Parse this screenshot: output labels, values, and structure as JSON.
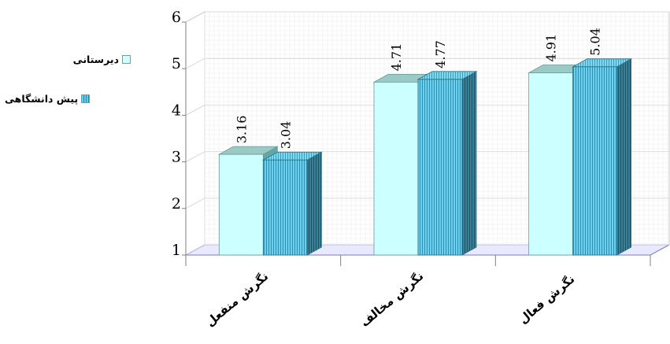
{
  "chart_data": {
    "type": "bar",
    "categories": [
      "نگرش منفعل",
      "نگرش مخالف",
      "نگرش فعال"
    ],
    "series": [
      {
        "name": "دیرستانی",
        "values": [
          3.16,
          4.71,
          4.91
        ]
      },
      {
        "name": "پیش دانشگاهی",
        "values": [
          3.04,
          4.77,
          5.04
        ]
      }
    ],
    "data_labels": [
      [
        "3.16",
        "4.71",
        "4.91"
      ],
      [
        "3.04",
        "4.77",
        "5.04"
      ]
    ],
    "yticks": [
      "1",
      "2",
      "3",
      "4",
      "5",
      "6"
    ],
    "ylim": [
      1,
      6
    ],
    "title": "",
    "xlabel": "",
    "ylabel": "",
    "grid": true,
    "legend_position": "left",
    "colors": {
      "series1_face": "#ccffff",
      "series2_face": "#66ccee",
      "series2_stripe": "#1f8fb0",
      "wall": "#7a7ad6",
      "axis": "#808080"
    }
  },
  "legend": {
    "items": [
      {
        "label": "دیرستانی"
      },
      {
        "label": "پیش دانشگاهی"
      }
    ]
  }
}
